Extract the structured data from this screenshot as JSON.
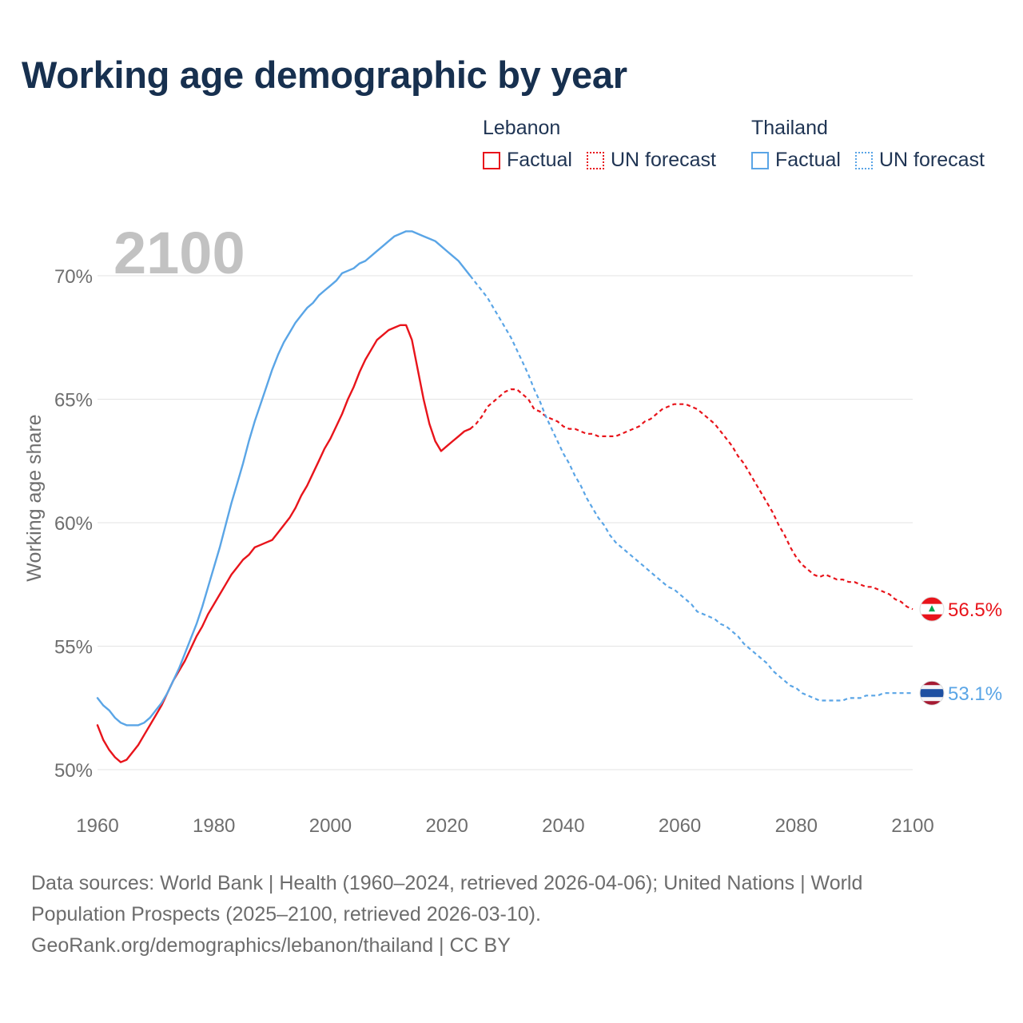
{
  "title": "Working age demographic by year",
  "legend": {
    "groups": [
      {
        "name": "Lebanon",
        "color": "#e8141b",
        "items": [
          {
            "label": "Factual",
            "style": "solid"
          },
          {
            "label": "UN forecast",
            "style": "dotted"
          }
        ]
      },
      {
        "name": "Thailand",
        "color": "#5aa5e6",
        "items": [
          {
            "label": "Factual",
            "style": "solid"
          },
          {
            "label": "UN forecast",
            "style": "dotted"
          }
        ]
      }
    ]
  },
  "year_display": "2100",
  "chart_data": {
    "type": "line",
    "title": "Working age demographic by year",
    "xlabel": "",
    "ylabel": "Working age share",
    "xlim": [
      1960,
      2100
    ],
    "ylim": [
      50,
      72
    ],
    "x_ticks": [
      1960,
      1980,
      2000,
      2020,
      2040,
      2060,
      2080,
      2100
    ],
    "x_tick_labels": [
      "1960",
      "1980",
      "2000",
      "2020",
      "2040",
      "2060",
      "2080",
      "2100"
    ],
    "y_ticks": [
      50,
      55,
      60,
      65,
      70
    ],
    "y_tick_labels": [
      "50%",
      "55%",
      "60%",
      "65%",
      "70%"
    ],
    "grid": true,
    "legend_position": "top-right",
    "forecast_start": 2024,
    "series": [
      {
        "name": "Lebanon",
        "color": "#e8141b",
        "end_label": "56.5%",
        "flag": "lebanon",
        "points": [
          [
            1960,
            51.8
          ],
          [
            1961,
            51.2
          ],
          [
            1962,
            50.8
          ],
          [
            1963,
            50.5
          ],
          [
            1964,
            50.3
          ],
          [
            1965,
            50.4
          ],
          [
            1966,
            50.7
          ],
          [
            1967,
            51.0
          ],
          [
            1968,
            51.4
          ],
          [
            1969,
            51.8
          ],
          [
            1970,
            52.2
          ],
          [
            1971,
            52.6
          ],
          [
            1972,
            53.1
          ],
          [
            1973,
            53.6
          ],
          [
            1974,
            54.0
          ],
          [
            1975,
            54.4
          ],
          [
            1976,
            54.9
          ],
          [
            1977,
            55.4
          ],
          [
            1978,
            55.8
          ],
          [
            1979,
            56.3
          ],
          [
            1980,
            56.7
          ],
          [
            1981,
            57.1
          ],
          [
            1982,
            57.5
          ],
          [
            1983,
            57.9
          ],
          [
            1984,
            58.2
          ],
          [
            1985,
            58.5
          ],
          [
            1986,
            58.7
          ],
          [
            1987,
            59.0
          ],
          [
            1988,
            59.1
          ],
          [
            1989,
            59.2
          ],
          [
            1990,
            59.3
          ],
          [
            1991,
            59.6
          ],
          [
            1992,
            59.9
          ],
          [
            1993,
            60.2
          ],
          [
            1994,
            60.6
          ],
          [
            1995,
            61.1
          ],
          [
            1996,
            61.5
          ],
          [
            1997,
            62.0
          ],
          [
            1998,
            62.5
          ],
          [
            1999,
            63.0
          ],
          [
            2000,
            63.4
          ],
          [
            2001,
            63.9
          ],
          [
            2002,
            64.4
          ],
          [
            2003,
            65.0
          ],
          [
            2004,
            65.5
          ],
          [
            2005,
            66.1
          ],
          [
            2006,
            66.6
          ],
          [
            2007,
            67.0
          ],
          [
            2008,
            67.4
          ],
          [
            2009,
            67.6
          ],
          [
            2010,
            67.8
          ],
          [
            2011,
            67.9
          ],
          [
            2012,
            68.0
          ],
          [
            2013,
            68.0
          ],
          [
            2014,
            67.4
          ],
          [
            2015,
            66.2
          ],
          [
            2016,
            65.0
          ],
          [
            2017,
            64.0
          ],
          [
            2018,
            63.3
          ],
          [
            2019,
            62.9
          ],
          [
            2020,
            63.1
          ],
          [
            2021,
            63.3
          ],
          [
            2022,
            63.5
          ],
          [
            2023,
            63.7
          ],
          [
            2024,
            63.8
          ],
          [
            2025,
            64.0
          ],
          [
            2026,
            64.3
          ],
          [
            2027,
            64.7
          ],
          [
            2028,
            64.9
          ],
          [
            2029,
            65.1
          ],
          [
            2030,
            65.3
          ],
          [
            2031,
            65.4
          ],
          [
            2032,
            65.4
          ],
          [
            2033,
            65.2
          ],
          [
            2034,
            65.0
          ],
          [
            2035,
            64.6
          ],
          [
            2036,
            64.5
          ],
          [
            2037,
            64.3
          ],
          [
            2038,
            64.2
          ],
          [
            2039,
            64.1
          ],
          [
            2040,
            63.9
          ],
          [
            2041,
            63.8
          ],
          [
            2042,
            63.8
          ],
          [
            2043,
            63.7
          ],
          [
            2044,
            63.6
          ],
          [
            2045,
            63.6
          ],
          [
            2046,
            63.5
          ],
          [
            2047,
            63.5
          ],
          [
            2048,
            63.5
          ],
          [
            2049,
            63.5
          ],
          [
            2050,
            63.6
          ],
          [
            2051,
            63.7
          ],
          [
            2052,
            63.8
          ],
          [
            2053,
            63.9
          ],
          [
            2054,
            64.1
          ],
          [
            2055,
            64.2
          ],
          [
            2056,
            64.4
          ],
          [
            2057,
            64.6
          ],
          [
            2058,
            64.7
          ],
          [
            2059,
            64.8
          ],
          [
            2060,
            64.8
          ],
          [
            2061,
            64.8
          ],
          [
            2062,
            64.7
          ],
          [
            2063,
            64.6
          ],
          [
            2064,
            64.4
          ],
          [
            2065,
            64.2
          ],
          [
            2066,
            64.0
          ],
          [
            2067,
            63.7
          ],
          [
            2068,
            63.4
          ],
          [
            2069,
            63.1
          ],
          [
            2070,
            62.7
          ],
          [
            2071,
            62.4
          ],
          [
            2072,
            62.0
          ],
          [
            2073,
            61.6
          ],
          [
            2074,
            61.2
          ],
          [
            2075,
            60.8
          ],
          [
            2076,
            60.4
          ],
          [
            2077,
            59.9
          ],
          [
            2078,
            59.5
          ],
          [
            2079,
            59.0
          ],
          [
            2080,
            58.6
          ],
          [
            2081,
            58.3
          ],
          [
            2082,
            58.1
          ],
          [
            2083,
            57.9
          ],
          [
            2084,
            57.8
          ],
          [
            2085,
            57.9
          ],
          [
            2086,
            57.8
          ],
          [
            2087,
            57.7
          ],
          [
            2088,
            57.7
          ],
          [
            2089,
            57.6
          ],
          [
            2090,
            57.6
          ],
          [
            2091,
            57.5
          ],
          [
            2092,
            57.4
          ],
          [
            2093,
            57.4
          ],
          [
            2094,
            57.3
          ],
          [
            2095,
            57.2
          ],
          [
            2096,
            57.1
          ],
          [
            2097,
            56.9
          ],
          [
            2098,
            56.8
          ],
          [
            2099,
            56.6
          ],
          [
            2100,
            56.5
          ]
        ]
      },
      {
        "name": "Thailand",
        "color": "#5aa5e6",
        "end_label": "53.1%",
        "flag": "thailand",
        "points": [
          [
            1960,
            52.9
          ],
          [
            1961,
            52.6
          ],
          [
            1962,
            52.4
          ],
          [
            1963,
            52.1
          ],
          [
            1964,
            51.9
          ],
          [
            1965,
            51.8
          ],
          [
            1966,
            51.8
          ],
          [
            1967,
            51.8
          ],
          [
            1968,
            51.9
          ],
          [
            1969,
            52.1
          ],
          [
            1970,
            52.4
          ],
          [
            1971,
            52.7
          ],
          [
            1972,
            53.1
          ],
          [
            1973,
            53.6
          ],
          [
            1974,
            54.1
          ],
          [
            1975,
            54.7
          ],
          [
            1976,
            55.3
          ],
          [
            1977,
            55.9
          ],
          [
            1978,
            56.6
          ],
          [
            1979,
            57.4
          ],
          [
            1980,
            58.2
          ],
          [
            1981,
            59.0
          ],
          [
            1982,
            59.9
          ],
          [
            1983,
            60.8
          ],
          [
            1984,
            61.6
          ],
          [
            1985,
            62.4
          ],
          [
            1986,
            63.3
          ],
          [
            1987,
            64.1
          ],
          [
            1988,
            64.8
          ],
          [
            1989,
            65.5
          ],
          [
            1990,
            66.2
          ],
          [
            1991,
            66.8
          ],
          [
            1992,
            67.3
          ],
          [
            1993,
            67.7
          ],
          [
            1994,
            68.1
          ],
          [
            1995,
            68.4
          ],
          [
            1996,
            68.7
          ],
          [
            1997,
            68.9
          ],
          [
            1998,
            69.2
          ],
          [
            1999,
            69.4
          ],
          [
            2000,
            69.6
          ],
          [
            2001,
            69.8
          ],
          [
            2002,
            70.1
          ],
          [
            2003,
            70.2
          ],
          [
            2004,
            70.3
          ],
          [
            2005,
            70.5
          ],
          [
            2006,
            70.6
          ],
          [
            2007,
            70.8
          ],
          [
            2008,
            71.0
          ],
          [
            2009,
            71.2
          ],
          [
            2010,
            71.4
          ],
          [
            2011,
            71.6
          ],
          [
            2012,
            71.7
          ],
          [
            2013,
            71.8
          ],
          [
            2014,
            71.8
          ],
          [
            2015,
            71.7
          ],
          [
            2016,
            71.6
          ],
          [
            2017,
            71.5
          ],
          [
            2018,
            71.4
          ],
          [
            2019,
            71.2
          ],
          [
            2020,
            71.0
          ],
          [
            2021,
            70.8
          ],
          [
            2022,
            70.6
          ],
          [
            2023,
            70.3
          ],
          [
            2024,
            70.0
          ],
          [
            2025,
            69.7
          ],
          [
            2026,
            69.4
          ],
          [
            2027,
            69.1
          ],
          [
            2028,
            68.7
          ],
          [
            2029,
            68.3
          ],
          [
            2030,
            67.9
          ],
          [
            2031,
            67.5
          ],
          [
            2032,
            67.0
          ],
          [
            2033,
            66.5
          ],
          [
            2034,
            66.0
          ],
          [
            2035,
            65.4
          ],
          [
            2036,
            64.9
          ],
          [
            2037,
            64.3
          ],
          [
            2038,
            63.8
          ],
          [
            2039,
            63.3
          ],
          [
            2040,
            62.8
          ],
          [
            2041,
            62.4
          ],
          [
            2042,
            61.9
          ],
          [
            2043,
            61.5
          ],
          [
            2044,
            61.0
          ],
          [
            2045,
            60.6
          ],
          [
            2046,
            60.2
          ],
          [
            2047,
            59.9
          ],
          [
            2048,
            59.5
          ],
          [
            2049,
            59.2
          ],
          [
            2050,
            59.0
          ],
          [
            2051,
            58.8
          ],
          [
            2052,
            58.6
          ],
          [
            2053,
            58.4
          ],
          [
            2054,
            58.2
          ],
          [
            2055,
            58.0
          ],
          [
            2056,
            57.8
          ],
          [
            2057,
            57.6
          ],
          [
            2058,
            57.4
          ],
          [
            2059,
            57.3
          ],
          [
            2060,
            57.1
          ],
          [
            2061,
            56.9
          ],
          [
            2062,
            56.7
          ],
          [
            2063,
            56.4
          ],
          [
            2064,
            56.3
          ],
          [
            2065,
            56.2
          ],
          [
            2066,
            56.1
          ],
          [
            2067,
            55.9
          ],
          [
            2068,
            55.8
          ],
          [
            2069,
            55.6
          ],
          [
            2070,
            55.4
          ],
          [
            2071,
            55.1
          ],
          [
            2072,
            54.9
          ],
          [
            2073,
            54.7
          ],
          [
            2074,
            54.5
          ],
          [
            2075,
            54.3
          ],
          [
            2076,
            54.0
          ],
          [
            2077,
            53.8
          ],
          [
            2078,
            53.6
          ],
          [
            2079,
            53.4
          ],
          [
            2080,
            53.3
          ],
          [
            2081,
            53.1
          ],
          [
            2082,
            53.0
          ],
          [
            2083,
            52.9
          ],
          [
            2084,
            52.8
          ],
          [
            2085,
            52.8
          ],
          [
            2086,
            52.8
          ],
          [
            2087,
            52.8
          ],
          [
            2088,
            52.8
          ],
          [
            2089,
            52.9
          ],
          [
            2090,
            52.9
          ],
          [
            2091,
            52.9
          ],
          [
            2092,
            53.0
          ],
          [
            2093,
            53.0
          ],
          [
            2094,
            53.0
          ],
          [
            2095,
            53.1
          ],
          [
            2096,
            53.1
          ],
          [
            2097,
            53.1
          ],
          [
            2098,
            53.1
          ],
          [
            2099,
            53.1
          ],
          [
            2100,
            53.1
          ]
        ]
      }
    ]
  },
  "footer": {
    "sources": "Data sources: World Bank | Health (1960–2024, retrieved 2026-04-06); United Nations | World Population Prospects (2025–2100, retrieved 2026-03-10).",
    "credit": "GeoRank.org/demographics/lebanon/thailand | CC BY"
  }
}
